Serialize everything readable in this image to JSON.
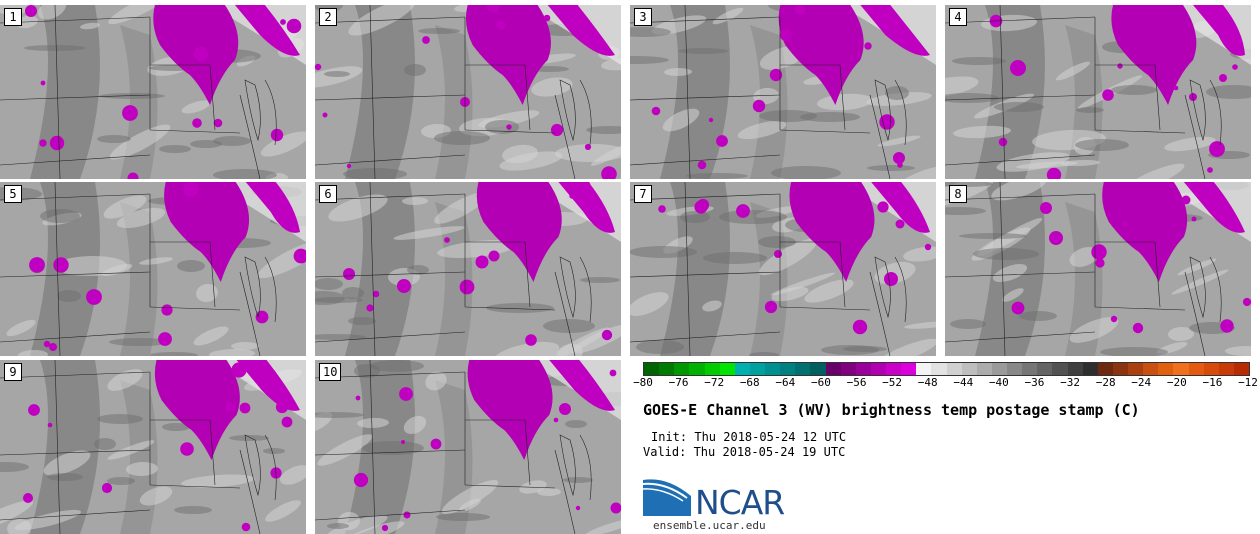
{
  "panels": [
    {
      "label": "1"
    },
    {
      "label": "2"
    },
    {
      "label": "3"
    },
    {
      "label": "4"
    },
    {
      "label": "5"
    },
    {
      "label": "6"
    },
    {
      "label": "7"
    },
    {
      "label": "8"
    },
    {
      "label": "9"
    },
    {
      "label": "10"
    }
  ],
  "colorbar": {
    "colors": [
      "#006400",
      "#007a00",
      "#009800",
      "#00b200",
      "#00cc00",
      "#00e400",
      "#00b0b0",
      "#00a0a0",
      "#009090",
      "#008080",
      "#007070",
      "#006060",
      "#6a006a",
      "#800080",
      "#9a009a",
      "#b000b0",
      "#c800c8",
      "#dc00dc",
      "#f4f4f4",
      "#e2e2e2",
      "#d0d0d0",
      "#bebebe",
      "#acacac",
      "#9a9a9a",
      "#888888",
      "#767676",
      "#646464",
      "#525252",
      "#404040",
      "#2e2e2e",
      "#6e2a10",
      "#8a3410",
      "#a84010",
      "#c85010",
      "#e06010",
      "#f07020",
      "#e45a12",
      "#d84a0c",
      "#c83a08",
      "#b82c04"
    ],
    "ticks": [
      "−80",
      "−76",
      "−72",
      "−68",
      "−64",
      "−60",
      "−56",
      "−52",
      "−48",
      "−44",
      "−40",
      "−36",
      "−32",
      "−28",
      "−24",
      "−20",
      "−16",
      "−12"
    ]
  },
  "title": "GOES-E Channel 3 (WV) brightness temp postage stamp (C)",
  "init": "Init: Thu 2018-05-24 12 UTC",
  "valid": "Valid: Thu 2018-05-24 19 UTC",
  "logo": {
    "text": "NCAR",
    "url": "ensemble.ucar.edu"
  }
}
